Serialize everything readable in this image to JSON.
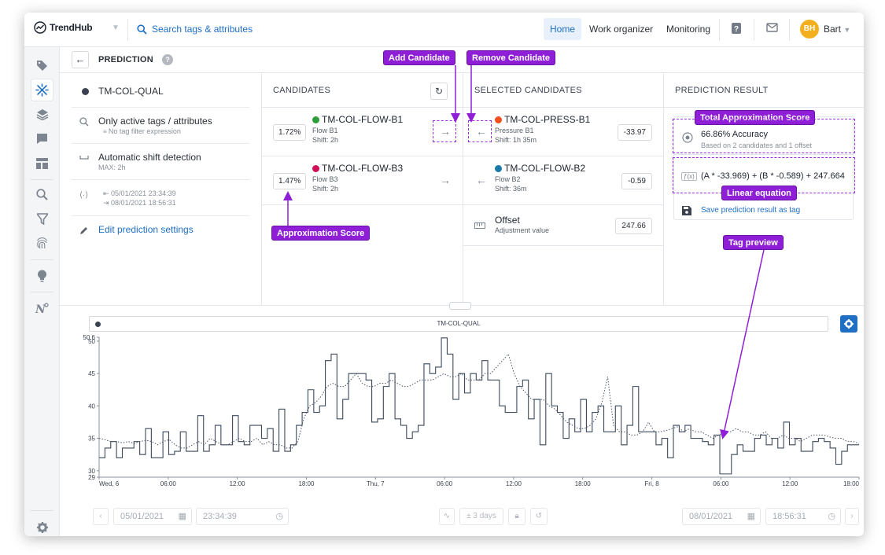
{
  "app": {
    "name": "TrendHub",
    "search_placeholder": "Search tags & attributes"
  },
  "nav": {
    "home": "Home",
    "work_organizer": "Work organizer",
    "monitoring": "Monitoring",
    "user_initials": "BH",
    "user_name": "Bart"
  },
  "page": {
    "title": "PREDICTION"
  },
  "settings": {
    "target_tag": "TM-COL-QUAL",
    "filter_label": "Only active tags / attributes",
    "filter_sub": "No tag filter expression",
    "shift_label": "Automatic shift detection",
    "shift_sub": "MAX: 2h",
    "range_start": "05/01/2021 23:34:39",
    "range_end": "08/01/2021 18:56:31",
    "edit_label": "Edit prediction settings"
  },
  "candidates": {
    "title": "CANDIDATES",
    "items": [
      {
        "score": "1.72%",
        "tag": "TM-COL-FLOW-B1",
        "desc": "Flow B1",
        "shift": "Shift: 2h",
        "color": "#2e9e3b"
      },
      {
        "score": "1.47%",
        "tag": "TM-COL-FLOW-B3",
        "desc": "Flow B3",
        "shift": "Shift: 2h",
        "color": "#d0105a"
      }
    ]
  },
  "selected": {
    "title": "SELECTED CANDIDATES",
    "items": [
      {
        "tag": "TM-COL-PRESS-B1",
        "desc": "Pressure B1",
        "shift": "Shift: 1h 35m",
        "value": "-33.97",
        "color": "#f2501e"
      },
      {
        "tag": "TM-COL-FLOW-B2",
        "desc": "Flow B2",
        "shift": "Shift: 36m",
        "value": "-0.59",
        "color": "#1c7aa8"
      }
    ],
    "offset_label": "Offset",
    "offset_sub": "Adjustment value",
    "offset_value": "247.66"
  },
  "result": {
    "title": "PREDICTION RESULT",
    "accuracy": "66.86% Accuracy",
    "accuracy_sub": "Based on 2 candidates and 1 offset",
    "equation": "(A * -33.969) + (B * -0.589) + 247.664",
    "save_label": "Save prediction result as tag"
  },
  "callouts": {
    "add": "Add Candidate",
    "remove": "Remove Candidate",
    "total_score": "Total Approximation Score",
    "approx_score": "Approximation Score",
    "linear_eq": "Linear equation",
    "tag_preview": "Tag preview"
  },
  "chart_data": {
    "type": "line",
    "title": "TM-COL-QUAL",
    "ylim": [
      29,
      50.6
    ],
    "y_ticks": [
      "50.6",
      "50",
      "45",
      "40",
      "35",
      "30",
      "29"
    ],
    "x_ticks": [
      "Wed, 6",
      "06:00",
      "12:00",
      "18:00",
      "Thu, 7",
      "06:00",
      "12:00",
      "18:00",
      "Fri, 8",
      "06:00",
      "12:00",
      "18:00"
    ],
    "grid": false,
    "series": [
      {
        "style": "step",
        "values": [
          32,
          33.5,
          34.5,
          32,
          33.5,
          33.5,
          34.5,
          32.5,
          36.5,
          32,
          32,
          36,
          32.5,
          33,
          36,
          33,
          33,
          38.5,
          33,
          34,
          37,
          34,
          34,
          38.5,
          34.5,
          34,
          37,
          37,
          35,
          36.5,
          33,
          39.5,
          33,
          34,
          37,
          39,
          42.5,
          39,
          40,
          47,
          48,
          38,
          41,
          45,
          45,
          45,
          44,
          37.5,
          38,
          43,
          45,
          38,
          37,
          35,
          36,
          37,
          46.5,
          45,
          46,
          50.5,
          48,
          41,
          45,
          42,
          45,
          44,
          47,
          44,
          44,
          40,
          39,
          39,
          43,
          44,
          38,
          41,
          34,
          45,
          40,
          39,
          35,
          38,
          36,
          41,
          36,
          39,
          40,
          36,
          36,
          40,
          34,
          37,
          43,
          36,
          36,
          36,
          34,
          35,
          32,
          37,
          36,
          37,
          35,
          35,
          34.5,
          34,
          35.5,
          29.5,
          29.5,
          32.5,
          34,
          33,
          33,
          35,
          35.5,
          34,
          35,
          33.5,
          37.5,
          34,
          35,
          33,
          33,
          34.5,
          35,
          34.5,
          33.5,
          31,
          33,
          34,
          34,
          34
        ]
      },
      {
        "style": "dotted",
        "values": [
          35,
          34.8,
          34.5,
          34.5,
          34.3,
          34.5,
          34.2,
          34.5,
          34.7,
          34.5,
          34,
          34.5,
          34.8,
          34,
          33.5,
          33.5,
          34,
          34.5,
          34,
          35,
          34.5,
          34,
          34,
          34.5,
          35,
          34.5,
          34.5,
          35,
          34,
          34.5,
          34,
          34,
          33.5,
          33.5,
          34.5,
          38,
          40,
          40.5,
          41.5,
          43,
          43.5,
          43,
          43,
          44,
          45,
          43.5,
          43,
          43,
          43.5,
          43.5,
          44,
          43.5,
          43,
          43,
          43.5,
          44,
          44,
          44,
          44.5,
          45,
          44.5,
          44.5,
          45,
          44,
          44,
          44,
          45,
          45,
          46,
          47,
          48,
          45,
          43,
          42,
          41,
          41,
          41,
          40,
          39.5,
          38.5,
          37.5,
          37,
          36.5,
          36.5,
          37,
          38,
          40.5,
          44.5,
          37,
          36,
          36,
          35.5,
          35.5,
          36,
          37.5,
          36,
          36,
          36.2,
          36.5,
          36.8,
          36,
          36.5,
          36,
          36,
          35.5,
          35,
          35.5,
          36,
          36,
          36.5,
          36,
          36,
          35.5,
          35.5,
          36,
          35,
          35,
          35.5,
          35,
          35,
          34.5,
          35,
          35.5,
          35.5,
          35.5,
          35.2,
          35,
          35,
          34.5,
          34.5,
          34.2
        ]
      }
    ]
  },
  "footer": {
    "start_date": "05/01/2021",
    "start_time": "23:34:39",
    "span": "± 3 days",
    "end_date": "08/01/2021",
    "end_time": "18:56:31"
  }
}
